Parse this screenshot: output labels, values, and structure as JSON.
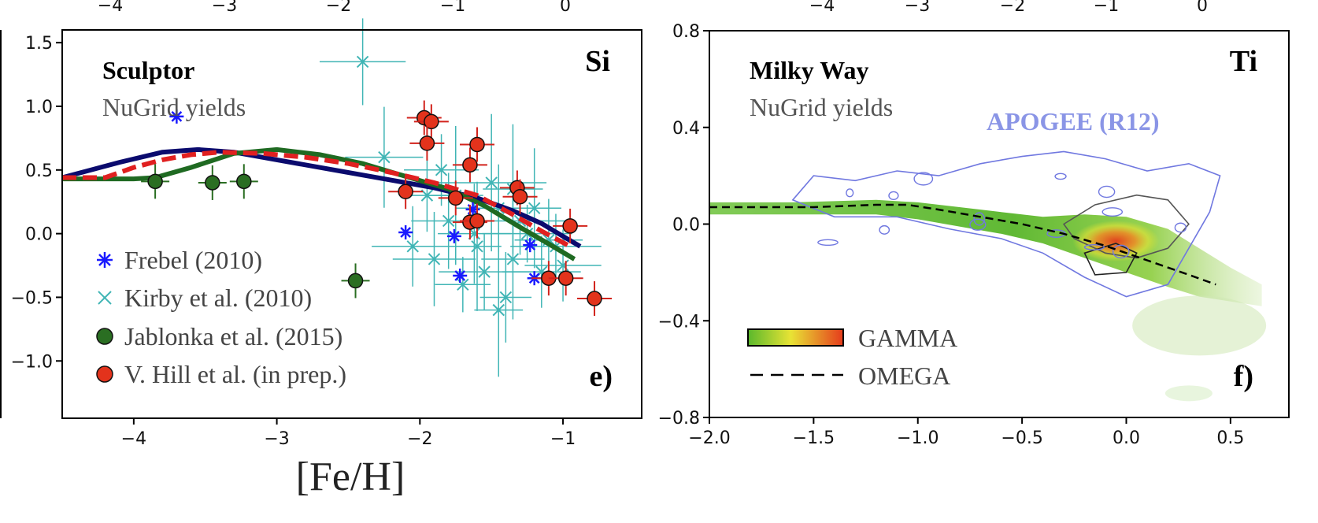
{
  "chart_data": [
    {
      "type": "scatter",
      "panel_label": "e)",
      "element": "Si",
      "galaxy": "Sculptor",
      "subtitle": "NuGrid yields",
      "xlabel": "[Fe/H]",
      "xlim": [
        -4.5,
        -0.45
      ],
      "ylim": [
        -1.45,
        1.6
      ],
      "xticks": [
        "−4",
        "−3",
        "−2",
        "−1"
      ],
      "xtick_values": [
        -4,
        -3,
        -2,
        -1
      ],
      "yticks": [
        "1.5",
        "1.0",
        "0.5",
        "0.0",
        "−0.5",
        "−1.0"
      ],
      "ytick_values": [
        1.5,
        1.0,
        0.5,
        0.0,
        -0.5,
        -1.0
      ],
      "top_ticks": [
        "−4",
        "−3",
        "−2",
        "−1",
        "0"
      ],
      "legend_position": "lower-left",
      "legend": [
        {
          "label": "Frebel (2010)",
          "marker": "asterisk",
          "color": "#1a1aff"
        },
        {
          "label": "Kirby et al. (2010)",
          "marker": "x",
          "color": "#40b5b5"
        },
        {
          "label": "Jablonka et al. (2015)",
          "marker": "circle",
          "color": "#2a6e22"
        },
        {
          "label": "V. Hill et al. (in prep.)",
          "marker": "circle",
          "color": "#e3331c"
        }
      ],
      "lines": [
        {
          "color": "#0b0b6e",
          "style": "solid",
          "x": [
            -4.5,
            -4.1,
            -3.8,
            -3.55,
            -3.3,
            -3.0,
            -2.6,
            -2.2,
            -1.9,
            -1.6,
            -1.35,
            -1.15,
            -1.0,
            -0.88
          ],
          "y": [
            0.44,
            0.56,
            0.64,
            0.66,
            0.64,
            0.58,
            0.5,
            0.42,
            0.36,
            0.28,
            0.18,
            0.08,
            -0.02,
            -0.1
          ]
        },
        {
          "color": "#1f6a22",
          "style": "solid",
          "x": [
            -4.5,
            -4.0,
            -3.85,
            -3.6,
            -3.3,
            -3.0,
            -2.7,
            -2.4,
            -2.1,
            -1.8,
            -1.55,
            -1.3,
            -1.1,
            -0.92
          ],
          "y": [
            0.43,
            0.43,
            0.44,
            0.52,
            0.63,
            0.66,
            0.62,
            0.55,
            0.45,
            0.35,
            0.22,
            0.05,
            -0.08,
            -0.2
          ]
        },
        {
          "color": "#e02020",
          "style": "dashed",
          "x": [
            -4.5,
            -4.2,
            -4.0,
            -3.8,
            -3.6,
            -3.4,
            -3.1,
            -2.8,
            -2.5,
            -2.2,
            -1.9,
            -1.6,
            -1.35,
            -1.15,
            -0.95
          ],
          "y": [
            0.44,
            0.44,
            0.52,
            0.58,
            0.62,
            0.64,
            0.63,
            0.6,
            0.55,
            0.48,
            0.4,
            0.3,
            0.15,
            0.02,
            -0.1
          ]
        }
      ],
      "series": [
        {
          "name": "Frebel (2010)",
          "x": [
            -3.7,
            -2.1,
            -1.76,
            -1.72,
            -1.63,
            -1.23,
            -1.2
          ],
          "y": [
            0.92,
            0.01,
            -0.02,
            -0.33,
            0.19,
            -0.09,
            -0.35
          ]
        },
        {
          "name": "Kirby et al. (2010)",
          "x": [
            -2.25,
            -1.95,
            -1.8,
            -1.6,
            -1.45,
            -1.35,
            -1.25,
            -1.15,
            -1.05,
            -1.9,
            -1.7,
            -1.5,
            -1.4,
            -1.3,
            -1.62,
            -1.55,
            -1.75,
            -1.85,
            -2.05,
            -1.2,
            -1.1,
            -1.45,
            -1.35,
            -1.0,
            -2.4
          ],
          "y": [
            0.6,
            0.3,
            0.1,
            -0.1,
            0.2,
            -0.2,
            0.0,
            -0.3,
            -0.1,
            -0.2,
            -0.4,
            0.4,
            -0.5,
            0.1,
            0.0,
            -0.3,
            0.3,
            0.5,
            -0.1,
            0.2,
            -0.05,
            -0.6,
            0.35,
            -0.25,
            1.35
          ]
        },
        {
          "name": "Jablonka et al. (2015)",
          "x": [
            -3.85,
            -3.45,
            -3.23,
            -2.45
          ],
          "y": [
            0.41,
            0.4,
            0.41,
            -0.37
          ]
        },
        {
          "name": "V. Hill et al. (in prep.)",
          "x": [
            -1.97,
            -1.92,
            -1.95,
            -1.65,
            -1.6,
            -1.32,
            -1.3,
            -2.1,
            -1.75,
            -1.65,
            -1.6,
            -1.1,
            -0.98,
            -0.78,
            -0.95
          ],
          "y": [
            0.91,
            0.88,
            0.71,
            0.54,
            0.7,
            0.36,
            0.29,
            0.33,
            0.28,
            0.09,
            0.1,
            -0.35,
            -0.35,
            -0.51,
            0.06
          ]
        }
      ]
    },
    {
      "type": "heatmap",
      "panel_label": "f)",
      "element": "Ti",
      "galaxy": "Milky Way",
      "subtitle": "NuGrid yields",
      "annotation": "APOGEE (R12)",
      "xlim": [
        -2.0,
        0.78
      ],
      "ylim": [
        -0.8,
        0.8
      ],
      "xticks": [
        "−2.0",
        "−1.5",
        "−1.0",
        "−0.5",
        "0.0",
        "0.5"
      ],
      "xtick_values": [
        -2.0,
        -1.5,
        -1.0,
        -0.5,
        0.0,
        0.5
      ],
      "yticks": [
        "0.8",
        "0.4",
        "0.0",
        "−0.4",
        "−0.8"
      ],
      "ytick_values": [
        0.8,
        0.4,
        0.0,
        -0.4,
        -0.8
      ],
      "top_ticks": [
        "−4",
        "−3",
        "−2",
        "−1",
        "0"
      ],
      "legend_position": "lower-left",
      "legend": [
        {
          "label": "GAMMA",
          "marker": "colorbar"
        },
        {
          "label": "OMEGA",
          "marker": "dashed-line",
          "color": "#000000"
        }
      ],
      "omega_line": {
        "x": [
          -2.0,
          -1.5,
          -1.2,
          -1.05,
          -0.9,
          -0.7,
          -0.5,
          -0.3,
          -0.1,
          0.1,
          0.3,
          0.43
        ],
        "y": [
          0.07,
          0.07,
          0.08,
          0.08,
          0.06,
          0.03,
          0.0,
          -0.04,
          -0.09,
          -0.15,
          -0.21,
          -0.25
        ]
      },
      "gamma_band": {
        "x": [
          -2.0,
          -1.6,
          -1.2,
          -1.0,
          -0.8,
          -0.6,
          -0.4,
          -0.2,
          0.0,
          0.2,
          0.35,
          0.5,
          0.65
        ],
        "y_upper": [
          0.09,
          0.09,
          0.1,
          0.09,
          0.07,
          0.05,
          0.03,
          0.04,
          0.03,
          -0.02,
          -0.1,
          -0.18,
          -0.25
        ],
        "y_lower": [
          0.04,
          0.04,
          0.04,
          0.02,
          -0.01,
          -0.04,
          -0.08,
          -0.14,
          -0.2,
          -0.26,
          -0.3,
          -0.32,
          -0.34
        ],
        "peak": {
          "x": -0.05,
          "y": -0.07
        }
      },
      "colors": {
        "gamma_low": "#5ab82c",
        "gamma_mid": "#e8e335",
        "gamma_high": "#e53b1c",
        "apogee": "#7078e0"
      }
    }
  ]
}
